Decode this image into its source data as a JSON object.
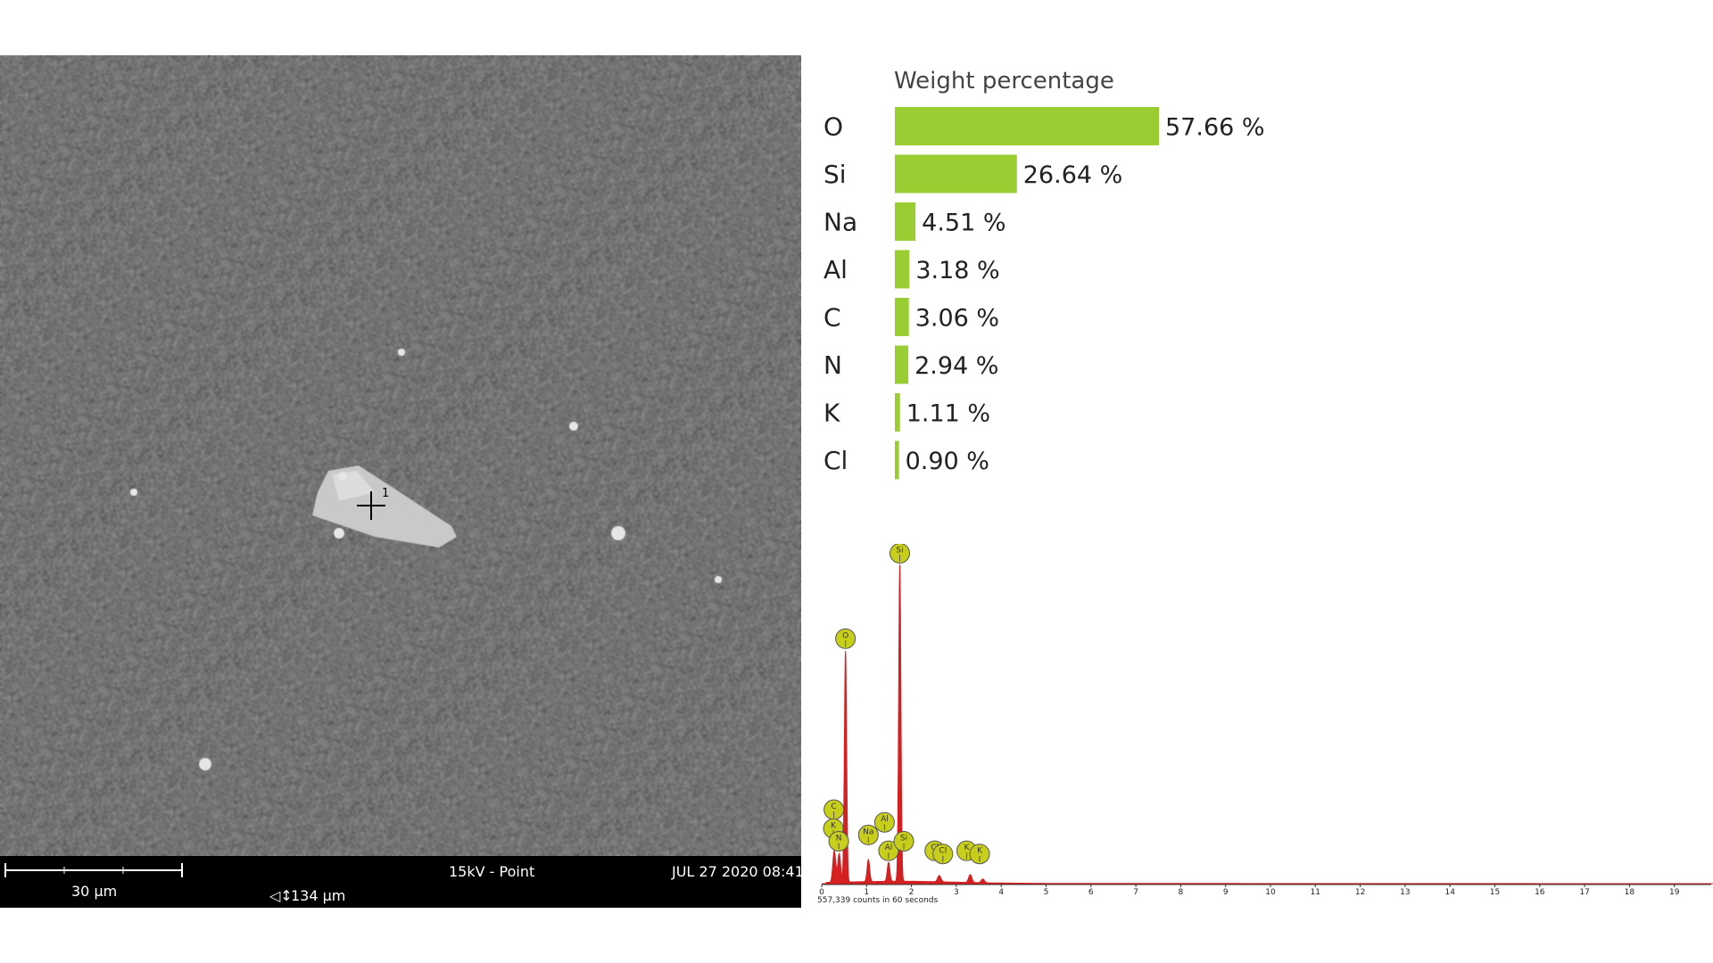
{
  "sem": {
    "scale_label": "30 µm",
    "fov_label": "134 µm",
    "mode": "15kV - Point",
    "timestamp": "JUL 27 2020 08:41",
    "marker_label": "1"
  },
  "colors": {
    "bar": "#9acd32",
    "spectrum": "#d42020",
    "marker_fill": "#c8cf1a"
  },
  "chart_data": [
    {
      "type": "bar",
      "title": "Weight percentage",
      "categories": [
        "O",
        "Si",
        "Na",
        "Al",
        "C",
        "N",
        "K",
        "Cl"
      ],
      "values": [
        57.66,
        26.64,
        4.51,
        3.18,
        3.06,
        2.94,
        1.11,
        0.9
      ],
      "value_labels": [
        "57.66 %",
        "26.64 %",
        "4.51 %",
        "3.18 %",
        "3.06 %",
        "2.94 %",
        "1.11 %",
        "0.90 %"
      ],
      "orientation": "horizontal"
    },
    {
      "type": "line",
      "footer": "557,339 counts in 60 seconds",
      "xlim": [
        0,
        20
      ],
      "xticks": [
        0,
        1,
        2,
        3,
        4,
        5,
        6,
        7,
        8,
        9,
        10,
        11,
        12,
        13,
        14,
        15,
        16,
        17,
        18,
        19
      ],
      "ylim": [
        0,
        1
      ],
      "peaks": [
        {
          "x": 0.28,
          "height": 0.1,
          "width": 0.045
        },
        {
          "x": 0.39,
          "height": 0.09,
          "width": 0.045
        },
        {
          "x": 0.53,
          "height": 0.73,
          "width": 0.035
        },
        {
          "x": 1.04,
          "height": 0.07,
          "width": 0.04
        },
        {
          "x": 1.49,
          "height": 0.06,
          "width": 0.04
        },
        {
          "x": 1.74,
          "height": 1.0,
          "width": 0.035
        },
        {
          "x": 2.62,
          "height": 0.02,
          "width": 0.05
        },
        {
          "x": 3.31,
          "height": 0.025,
          "width": 0.05
        },
        {
          "x": 3.59,
          "height": 0.012,
          "width": 0.05
        }
      ],
      "markers": [
        {
          "label": "C",
          "x": 0.27,
          "level": 0.2
        },
        {
          "label": "K",
          "x": 0.26,
          "level": 0.14
        },
        {
          "label": "N",
          "x": 0.38,
          "level": 0.1
        },
        {
          "label": "O",
          "x": 0.53,
          "level": 0.74
        },
        {
          "label": "Na",
          "x": 1.04,
          "level": 0.12
        },
        {
          "label": "Al",
          "x": 1.4,
          "level": 0.16
        },
        {
          "label": "Al",
          "x": 1.49,
          "level": 0.07
        },
        {
          "label": "Si",
          "x": 1.74,
          "level": 1.01
        },
        {
          "label": "Si",
          "x": 1.83,
          "level": 0.1
        },
        {
          "label": "Cl",
          "x": 2.52,
          "level": 0.07
        },
        {
          "label": "Cl",
          "x": 2.7,
          "level": 0.06
        },
        {
          "label": "K",
          "x": 3.23,
          "level": 0.07
        },
        {
          "label": "K",
          "x": 3.52,
          "level": 0.06
        }
      ]
    }
  ]
}
